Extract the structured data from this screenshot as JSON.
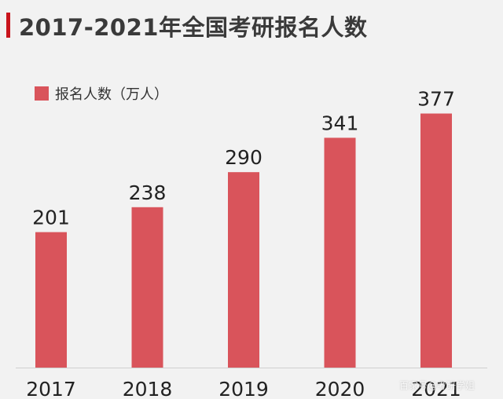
{
  "header": {
    "title": "2017-2021年全国考研报名人数"
  },
  "colors": {
    "accent": "#c9141c",
    "bar": "#d9545b",
    "axis": "#cfcfcf",
    "text": "#222222"
  },
  "chart_data": {
    "type": "bar",
    "title": "2017-2021年全国考研报名人数",
    "categories": [
      "2017",
      "2018",
      "2019",
      "2020",
      "2021"
    ],
    "series": [
      {
        "name": "报名人数（万人）",
        "values": [
          201,
          238,
          290,
          341,
          377
        ]
      }
    ],
    "data_labels": [
      "201",
      "238",
      "290",
      "341",
      "377"
    ],
    "ylim": [
      0,
      400
    ],
    "grid": false,
    "legend": "top-left"
  },
  "watermark": "百家号@考研学姐"
}
